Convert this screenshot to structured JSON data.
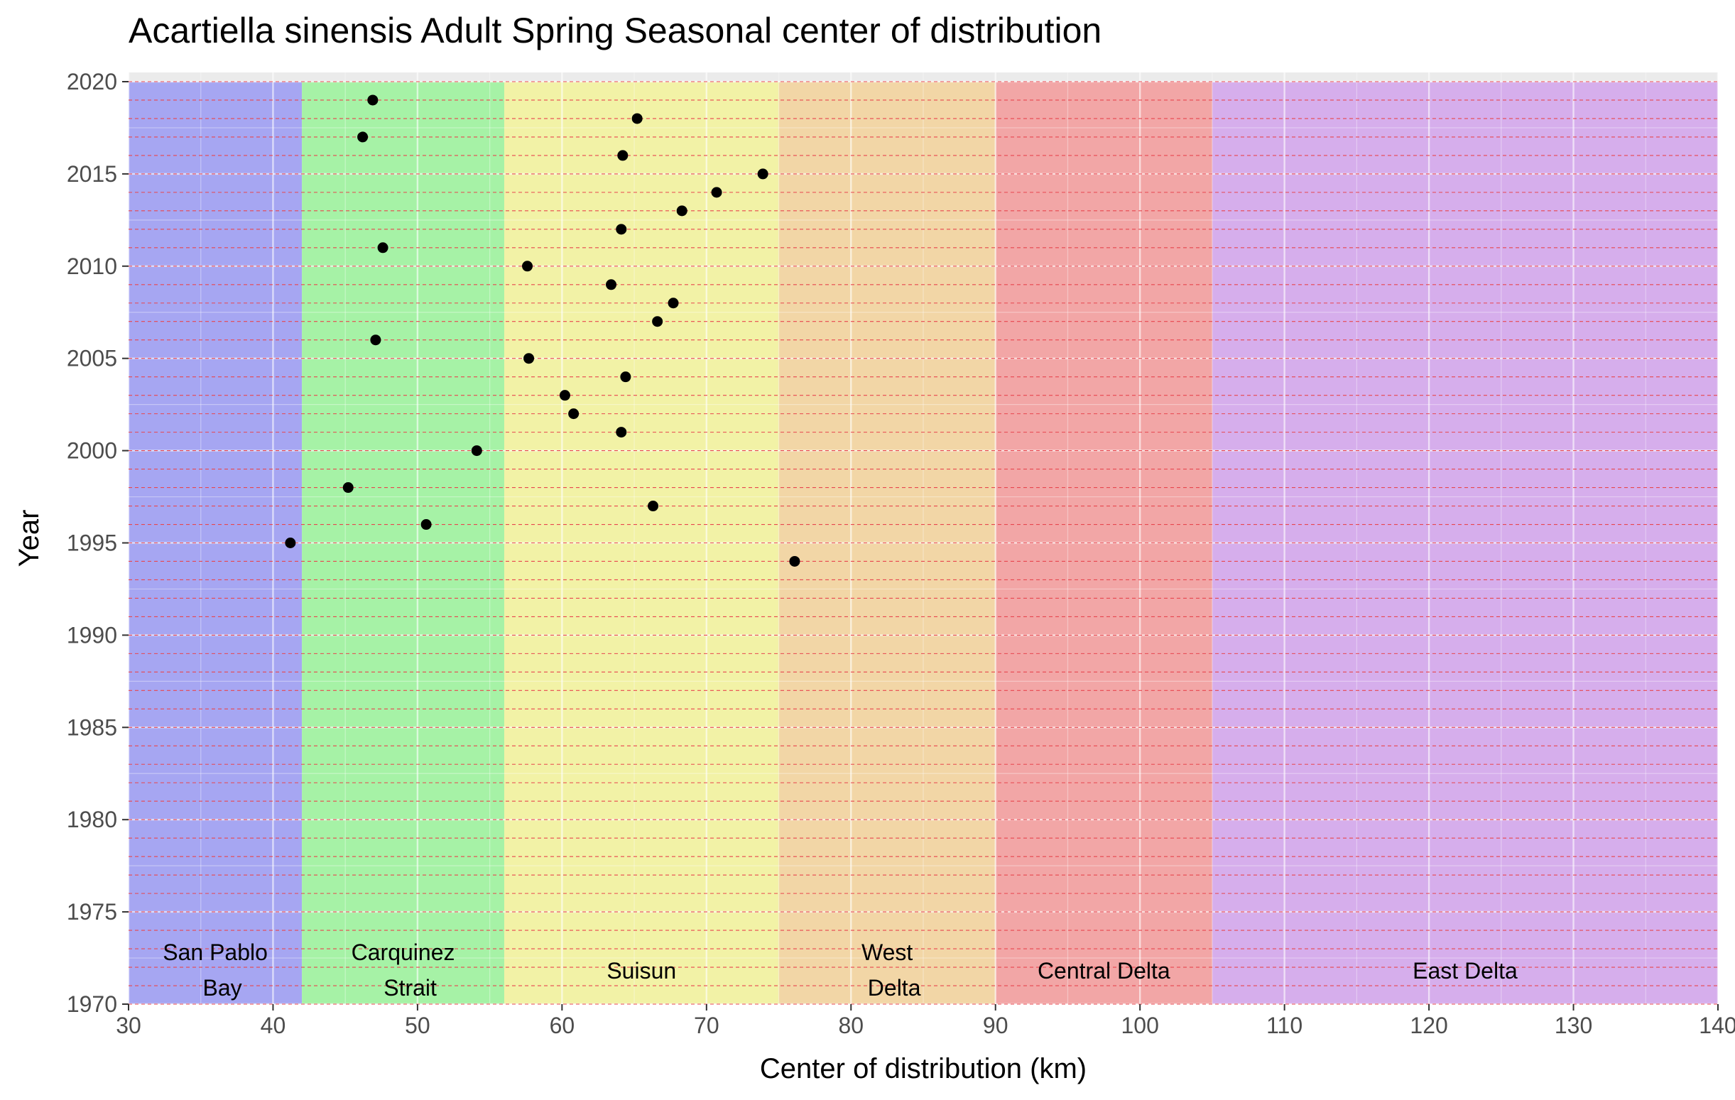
{
  "chart_data": {
    "type": "scatter",
    "title": "Acartiella sinensis Adult Spring Seasonal center of distribution",
    "xlabel": "Center of distribution (km)",
    "ylabel": "Year",
    "xlim": [
      30,
      140
    ],
    "ylim": [
      1970,
      2020.5
    ],
    "x_ticks": [
      30,
      40,
      50,
      60,
      70,
      80,
      90,
      100,
      110,
      120,
      130,
      140
    ],
    "y_ticks": [
      1970,
      1975,
      1980,
      1985,
      1990,
      1995,
      2000,
      2005,
      2010,
      2015,
      2020
    ],
    "grid": true,
    "legend": "none",
    "year_reference_lines": {
      "from": 1970,
      "to": 2020,
      "step": 1,
      "color": "#e8474f",
      "style": "dashed"
    },
    "regions": [
      {
        "name": "San Pablo Bay",
        "label_lines": [
          "San Pablo",
          "Bay"
        ],
        "xmin": 30,
        "xmax": 42,
        "color": "#a6a6f2"
      },
      {
        "name": "Carquinez Strait",
        "label_lines": [
          "Carquinez",
          "Strait"
        ],
        "xmin": 42,
        "xmax": 56,
        "color": "#a6f2a6"
      },
      {
        "name": "Suisun",
        "label_lines": [
          "Suisun"
        ],
        "xmin": 56,
        "xmax": 75,
        "color": "#f2f2a6"
      },
      {
        "name": "West Delta",
        "label_lines": [
          "West",
          "Delta"
        ],
        "xmin": 75,
        "xmax": 90,
        "color": "#f2d6a6"
      },
      {
        "name": "Central Delta",
        "label_lines": [
          "Central Delta"
        ],
        "xmin": 90,
        "xmax": 105,
        "color": "#f2a6a6"
      },
      {
        "name": "East Delta",
        "label_lines": [
          "East Delta"
        ],
        "xmin": 105,
        "xmax": 140,
        "color": "#d6aeec"
      }
    ],
    "points": [
      {
        "year": 1994,
        "x": 76.1
      },
      {
        "year": 1995,
        "x": 41.2
      },
      {
        "year": 1996,
        "x": 50.6
      },
      {
        "year": 1997,
        "x": 66.3
      },
      {
        "year": 1998,
        "x": 45.2
      },
      {
        "year": 2000,
        "x": 54.1
      },
      {
        "year": 2001,
        "x": 64.1
      },
      {
        "year": 2002,
        "x": 60.8
      },
      {
        "year": 2003,
        "x": 60.2
      },
      {
        "year": 2004,
        "x": 64.4
      },
      {
        "year": 2005,
        "x": 57.7
      },
      {
        "year": 2006,
        "x": 47.1
      },
      {
        "year": 2007,
        "x": 66.6
      },
      {
        "year": 2008,
        "x": 67.7
      },
      {
        "year": 2009,
        "x": 63.4
      },
      {
        "year": 2010,
        "x": 57.6
      },
      {
        "year": 2011,
        "x": 47.6
      },
      {
        "year": 2012,
        "x": 64.1
      },
      {
        "year": 2013,
        "x": 68.3
      },
      {
        "year": 2014,
        "x": 70.7
      },
      {
        "year": 2015,
        "x": 73.9
      },
      {
        "year": 2016,
        "x": 64.2
      },
      {
        "year": 2017,
        "x": 46.2
      },
      {
        "year": 2018,
        "x": 65.2
      },
      {
        "year": 2019,
        "x": 46.9
      }
    ]
  }
}
